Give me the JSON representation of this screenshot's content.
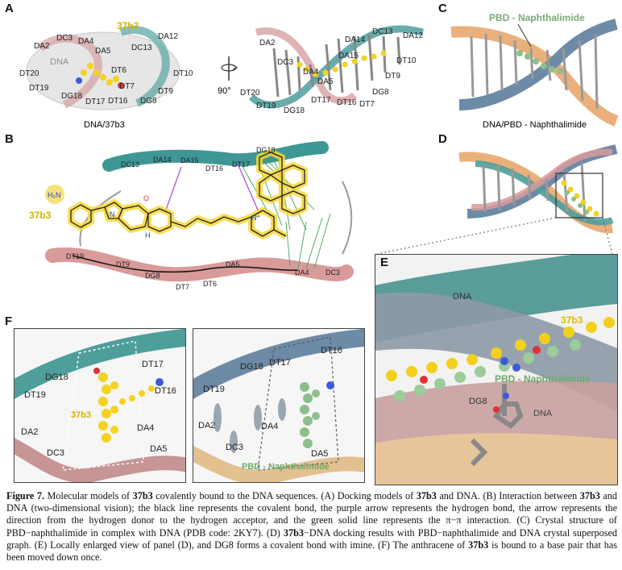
{
  "panels": {
    "a": {
      "letter": "A",
      "left_compound": "37b3",
      "left_dna": "DNA",
      "left_caption": "DNA/37b3",
      "left_labels": [
        "DA2",
        "DC3",
        "DA4",
        "DA5",
        "DT6",
        "DT7",
        "DT20",
        "DT19",
        "DG18",
        "DT17",
        "DT16",
        "DC13",
        "DA12",
        "DT10",
        "DG8",
        "DT9"
      ],
      "rotation": "90°",
      "right_labels": [
        "DA2",
        "DC3",
        "DA4",
        "DA5",
        "DT20",
        "DT19",
        "DG18",
        "DT17",
        "DT16",
        "DT7",
        "DG8",
        "DT9",
        "DT10",
        "DA15",
        "DA14",
        "DC13",
        "DA12"
      ]
    },
    "b": {
      "letter": "B",
      "compound": "37b3",
      "top_strand": [
        "DC13",
        "DA14",
        "DA15",
        "DT16",
        "DT17",
        "DG18"
      ],
      "bottom_strand": [
        "DT19",
        "DT9",
        "DG8",
        "DT7",
        "DT6",
        "DA5",
        "DA4",
        "DC3"
      ],
      "atoms": {
        "nh2": "H₂N",
        "nh": "N\nH",
        "nplus": "N⁺",
        "n": "N",
        "o": "O",
        "h": "H"
      }
    },
    "c": {
      "letter": "C",
      "ligand": "PBD - Naphthalimide",
      "caption": "DNA/PBD - Naphthalimide"
    },
    "d": {
      "letter": "D"
    },
    "e": {
      "letter": "E",
      "labels": [
        "DNA",
        "37b3",
        "PBD - Naphthalimide",
        "DG8",
        "DNA"
      ]
    },
    "f": {
      "letter": "F",
      "left_labels": [
        "DG18",
        "DT17",
        "DT19",
        "DT16",
        "37b3",
        "DA4",
        "DA2",
        "DC3",
        "DA5"
      ],
      "right_labels": [
        "DT16",
        "DG18",
        "DT17",
        "DT19",
        "DA4",
        "DA2",
        "DC3",
        "DA5",
        "PBD - Naphthalimide"
      ]
    }
  },
  "caption": {
    "fig_label": "Figure 7.",
    "s1": "Molecular models of ",
    "c1": "37b3",
    "s2": " covalently bound to the DNA sequences. (A) Docking models of ",
    "c2": "37b3",
    "s3": " and DNA. (B) Interaction between ",
    "c3": "37b3",
    "s4": " and DNA (two-dimensional vision); the black line represents the covalent bond, the purple arrow represents the hydrogen bond, the arrow represents the direction from the hydrogen donor to the hydrogen acceptor, and the green solid line represents the π−π interaction. (C) Crystal structure of PBD−naphthalimide in complex with DNA (PDB code: 2KY7). (D) ",
    "c4": "37b3",
    "s5": "−DNA docking results with PBD−naphthalimide and DNA crystal superposed graph. (E) Locally enlarged view of panel (D), and DG8 forms a covalent bond with imine. (F) The anthracene of ",
    "c5": "37b3",
    "s6": " is bound to a base pair that has been moved down once."
  },
  "colors": {
    "teal": "#4e9e9c",
    "pink": "#d99a9a",
    "yellow": "#f4d21f",
    "green": "#8dbf8c",
    "blue_grey": "#6d8aa6",
    "orange": "#e9b07c",
    "purple": "#b14fd6"
  }
}
